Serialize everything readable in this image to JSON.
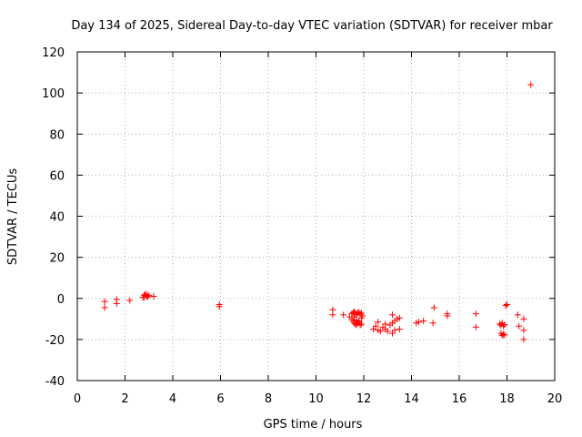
{
  "chart_data": {
    "type": "scatter",
    "title": "Day 134 of 2025, Sidereal Day-to-day VTEC variation (SDTVAR) for receiver mbar",
    "xlabel": "GPS time / hours",
    "ylabel": "SDTVAR / TECUs",
    "xlim": [
      0,
      20
    ],
    "ylim": [
      -40,
      120
    ],
    "xticks": [
      "0",
      "2",
      "4",
      "6",
      "8",
      "10",
      "12",
      "14",
      "16",
      "18",
      "20"
    ],
    "yticks": [
      "-40",
      "-20",
      "0",
      "20",
      "40",
      "60",
      "80",
      "100",
      "120"
    ],
    "grid": true,
    "marker": "+",
    "color": "#ff0000",
    "series": [
      {
        "name": "SDTVAR",
        "x": [
          1.15,
          1.15,
          1.65,
          1.65,
          2.2,
          2.75,
          2.8,
          2.85,
          2.9,
          2.95,
          3.0,
          2.8,
          2.9,
          3.2,
          5.95,
          5.95,
          10.7,
          10.7,
          11.15,
          11.4,
          11.5,
          11.55,
          11.6,
          11.65,
          11.7,
          11.75,
          11.8,
          11.85,
          11.9,
          11.5,
          11.55,
          11.6,
          11.65,
          11.7,
          11.75,
          11.8,
          11.85,
          11.9,
          11.6,
          11.7,
          11.8,
          11.9,
          11.95,
          12.4,
          12.5,
          12.6,
          12.7,
          12.8,
          12.9,
          13.0,
          13.1,
          13.2,
          13.3,
          13.4,
          13.5,
          12.6,
          12.9,
          13.2,
          13.5,
          13.2,
          13.3,
          14.2,
          14.3,
          14.5,
          14.9,
          14.95,
          15.5,
          15.5,
          16.7,
          16.7,
          17.7,
          17.75,
          17.8,
          17.85,
          17.9,
          17.75,
          17.8,
          17.85,
          17.9,
          18.0,
          17.95,
          18.45,
          18.5,
          18.7,
          18.7,
          18.7,
          19.0
        ],
        "y": [
          -1.5,
          -4.5,
          -0.5,
          -2.5,
          -1.0,
          0.5,
          1.5,
          2.0,
          1.0,
          0.8,
          1.5,
          0.5,
          1.8,
          1.0,
          -3.0,
          -4.0,
          -5.5,
          -8.0,
          -8.0,
          -9.0,
          -7.5,
          -7.0,
          -6.5,
          -7.2,
          -7.8,
          -7.0,
          -6.8,
          -7.5,
          -7.2,
          -10.0,
          -11.0,
          -12.0,
          -12.5,
          -13.0,
          -12.0,
          -11.5,
          -13.0,
          -12.5,
          -9.0,
          -10.5,
          -11.0,
          -9.5,
          -8.5,
          -15.0,
          -13.5,
          -15.5,
          -16.0,
          -14.0,
          -15.0,
          -16.0,
          -13.0,
          -12.0,
          -11.0,
          -10.0,
          -15.0,
          -11.5,
          -12.5,
          -17.0,
          -9.5,
          -8.0,
          -15.5,
          -12.0,
          -11.5,
          -11.0,
          -12.0,
          -4.5,
          -7.5,
          -8.5,
          -7.5,
          -14.0,
          -12.5,
          -13.0,
          -12.0,
          -13.5,
          -12.8,
          -17.0,
          -18.0,
          -17.5,
          -17.8,
          -3.0,
          -3.5,
          -8.0,
          -13.5,
          -10.0,
          -15.5,
          -20.0,
          104.0
        ]
      }
    ]
  }
}
